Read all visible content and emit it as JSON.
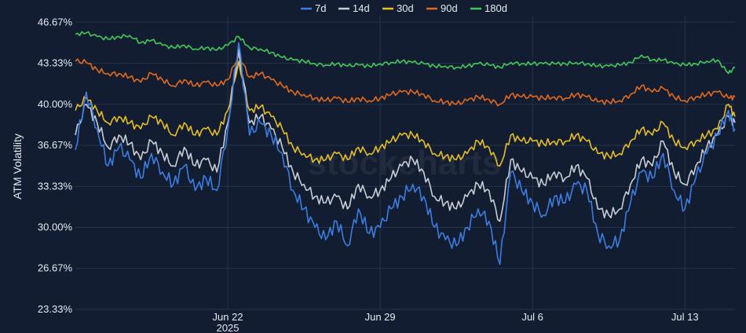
{
  "chart_data": {
    "type": "line",
    "title": "",
    "ylabel": "ATM Volatility",
    "xlabel": "",
    "watermark": "stockcharts",
    "ylim": [
      23.33,
      47.2
    ],
    "y_ticks": [
      "46.67%",
      "43.33%",
      "40.00%",
      "36.67%",
      "33.33%",
      "30.00%",
      "26.67%",
      "23.33%"
    ],
    "y_tick_values": [
      46.67,
      43.33,
      40.0,
      36.67,
      33.33,
      30.0,
      26.67,
      23.33
    ],
    "x_ticks": [
      {
        "day": 22,
        "label": "Jun 22",
        "sub": "2025"
      },
      {
        "day": 29,
        "label": "Jun 29",
        "sub": ""
      },
      {
        "day": 36,
        "label": "Jul 6",
        "sub": ""
      },
      {
        "day": 43,
        "label": "Jul 13",
        "sub": ""
      }
    ],
    "xlim": [
      15.0,
      45.3
    ],
    "legend_position": "top-center",
    "grid": true,
    "series": [
      {
        "name": "7d",
        "color": "#3b7de0",
        "x": [
          15.0,
          15.5,
          16.0,
          16.5,
          17.0,
          17.5,
          18.0,
          18.5,
          19.0,
          19.5,
          20.0,
          20.5,
          21.0,
          21.5,
          22.0,
          22.5,
          23.0,
          23.5,
          24.0,
          24.5,
          25.0,
          25.5,
          26.0,
          26.5,
          27.0,
          27.5,
          28.0,
          28.5,
          29.0,
          29.5,
          30.0,
          30.5,
          31.0,
          31.5,
          32.0,
          32.5,
          33.0,
          33.5,
          34.0,
          34.5,
          35.0,
          35.5,
          36.0,
          36.5,
          37.0,
          37.5,
          38.0,
          38.5,
          39.0,
          39.5,
          40.0,
          40.5,
          41.0,
          41.5,
          42.0,
          42.5,
          43.0,
          43.5,
          44.0,
          44.5,
          45.0,
          45.3
        ],
        "y": [
          36.3,
          41.0,
          38.0,
          35.0,
          36.5,
          35.5,
          34.0,
          36.0,
          34.5,
          33.5,
          35.0,
          33.0,
          34.0,
          33.0,
          38.0,
          45.0,
          37.5,
          38.5,
          37.5,
          36.0,
          33.0,
          31.5,
          30.0,
          29.0,
          30.5,
          28.5,
          31.5,
          29.5,
          30.0,
          31.5,
          32.5,
          33.5,
          32.5,
          30.0,
          29.0,
          28.5,
          30.0,
          31.5,
          30.5,
          27.0,
          34.5,
          33.0,
          32.0,
          31.0,
          32.5,
          32.0,
          33.5,
          33.0,
          29.5,
          28.5,
          29.0,
          32.0,
          34.5,
          34.0,
          36.0,
          33.0,
          31.5,
          34.0,
          36.0,
          37.5,
          39.5,
          38.0
        ]
      },
      {
        "name": "14d",
        "color": "#c9ced6",
        "x": [
          15.0,
          15.5,
          16.0,
          16.5,
          17.0,
          17.5,
          18.0,
          18.5,
          19.0,
          19.5,
          20.0,
          20.5,
          21.0,
          21.5,
          22.0,
          22.5,
          23.0,
          23.5,
          24.0,
          24.5,
          25.0,
          25.5,
          26.0,
          26.5,
          27.0,
          27.5,
          28.0,
          28.5,
          29.0,
          29.5,
          30.0,
          30.5,
          31.0,
          31.5,
          32.0,
          32.5,
          33.0,
          33.5,
          34.0,
          34.5,
          35.0,
          35.5,
          36.0,
          36.5,
          37.0,
          37.5,
          38.0,
          38.5,
          39.0,
          39.5,
          40.0,
          40.5,
          41.0,
          41.5,
          42.0,
          42.5,
          43.0,
          43.5,
          44.0,
          44.5,
          45.0,
          45.3
        ],
        "y": [
          37.5,
          40.0,
          38.5,
          36.5,
          37.5,
          36.8,
          35.5,
          37.0,
          36.0,
          35.0,
          36.5,
          35.0,
          35.5,
          34.5,
          38.5,
          44.5,
          38.5,
          39.0,
          38.0,
          36.5,
          34.5,
          33.5,
          32.5,
          32.0,
          32.5,
          31.5,
          33.5,
          32.5,
          33.0,
          34.0,
          35.0,
          35.5,
          34.5,
          32.5,
          32.0,
          31.5,
          32.5,
          33.5,
          33.0,
          30.5,
          35.5,
          34.5,
          34.0,
          33.5,
          34.5,
          34.0,
          35.0,
          34.0,
          31.5,
          31.0,
          31.5,
          33.5,
          35.5,
          35.0,
          37.0,
          34.5,
          33.5,
          35.0,
          36.5,
          37.5,
          39.0,
          38.5
        ]
      },
      {
        "name": "30d",
        "color": "#e8bf22",
        "x": [
          15.0,
          15.5,
          16.0,
          16.5,
          17.0,
          17.5,
          18.0,
          18.5,
          19.0,
          19.5,
          20.0,
          20.5,
          21.0,
          21.5,
          22.0,
          22.5,
          23.0,
          23.5,
          24.0,
          24.5,
          25.0,
          25.5,
          26.0,
          26.5,
          27.0,
          27.5,
          28.0,
          28.5,
          29.0,
          29.5,
          30.0,
          30.5,
          31.0,
          31.5,
          32.0,
          32.5,
          33.0,
          33.5,
          34.0,
          34.5,
          35.0,
          35.5,
          36.0,
          36.5,
          37.0,
          37.5,
          38.0,
          38.5,
          39.0,
          39.5,
          40.0,
          40.5,
          41.0,
          41.5,
          42.0,
          42.5,
          43.0,
          43.5,
          44.0,
          44.5,
          45.0,
          45.3
        ],
        "y": [
          39.5,
          40.5,
          39.5,
          38.5,
          39.0,
          38.5,
          38.0,
          39.0,
          38.5,
          37.5,
          38.5,
          37.5,
          38.0,
          37.5,
          39.5,
          43.5,
          39.5,
          39.8,
          39.0,
          38.0,
          36.5,
          36.0,
          35.5,
          35.5,
          36.0,
          35.5,
          36.5,
          36.0,
          36.5,
          37.0,
          37.5,
          37.5,
          37.0,
          36.0,
          35.8,
          35.5,
          36.0,
          37.0,
          36.5,
          35.0,
          37.5,
          37.0,
          37.0,
          36.8,
          37.0,
          37.0,
          37.5,
          37.0,
          36.0,
          35.8,
          36.0,
          37.0,
          38.0,
          37.5,
          38.5,
          37.0,
          36.5,
          37.0,
          37.5,
          38.0,
          40.0,
          39.0
        ]
      },
      {
        "name": "90d",
        "color": "#e26a1c",
        "x": [
          15.0,
          15.5,
          16.0,
          16.5,
          17.0,
          17.5,
          18.0,
          18.5,
          19.0,
          19.5,
          20.0,
          20.5,
          21.0,
          21.5,
          22.0,
          22.5,
          23.0,
          23.5,
          24.0,
          24.5,
          25.0,
          25.5,
          26.0,
          26.5,
          27.0,
          27.5,
          28.0,
          28.5,
          29.0,
          29.5,
          30.0,
          30.5,
          31.0,
          31.5,
          32.0,
          32.5,
          33.0,
          33.5,
          34.0,
          34.5,
          35.0,
          35.5,
          36.0,
          36.5,
          37.0,
          37.5,
          38.0,
          38.5,
          39.0,
          39.5,
          40.0,
          40.5,
          41.0,
          41.5,
          42.0,
          42.5,
          43.0,
          43.5,
          44.0,
          44.5,
          45.0,
          45.3
        ],
        "y": [
          43.5,
          43.4,
          42.8,
          42.5,
          42.5,
          42.2,
          41.8,
          42.5,
          42.0,
          41.5,
          42.0,
          41.5,
          41.8,
          41.5,
          42.0,
          44.0,
          42.2,
          42.5,
          42.0,
          41.5,
          41.0,
          40.8,
          40.5,
          40.3,
          40.5,
          40.2,
          40.5,
          40.3,
          40.5,
          40.8,
          41.0,
          41.0,
          40.8,
          40.3,
          40.2,
          40.0,
          40.3,
          40.6,
          40.4,
          40.0,
          40.8,
          40.6,
          40.6,
          40.5,
          40.6,
          40.5,
          40.8,
          40.6,
          40.2,
          40.2,
          40.3,
          40.8,
          41.5,
          41.0,
          41.3,
          40.6,
          40.3,
          40.6,
          40.8,
          41.0,
          40.5,
          40.6
        ]
      },
      {
        "name": "180d",
        "color": "#3fc95a",
        "x": [
          15.0,
          15.5,
          16.0,
          16.5,
          17.0,
          17.5,
          18.0,
          18.5,
          19.0,
          19.5,
          20.0,
          20.5,
          21.0,
          21.5,
          22.0,
          22.5,
          23.0,
          23.5,
          24.0,
          24.5,
          25.0,
          25.5,
          26.0,
          26.5,
          27.0,
          27.5,
          28.0,
          28.5,
          29.0,
          29.5,
          30.0,
          30.5,
          31.0,
          31.5,
          32.0,
          32.5,
          33.0,
          33.5,
          34.0,
          34.5,
          35.0,
          35.5,
          36.0,
          36.5,
          37.0,
          37.5,
          38.0,
          38.5,
          39.0,
          39.5,
          40.0,
          40.5,
          41.0,
          41.5,
          42.0,
          42.5,
          43.0,
          43.5,
          44.0,
          44.5,
          45.0,
          45.3
        ],
        "y": [
          45.7,
          45.8,
          45.5,
          45.3,
          45.5,
          45.6,
          45.0,
          45.2,
          44.8,
          44.6,
          44.8,
          44.5,
          44.6,
          44.4,
          44.8,
          45.5,
          44.6,
          44.5,
          44.2,
          43.8,
          43.6,
          43.5,
          43.3,
          43.2,
          43.3,
          43.1,
          43.2,
          43.1,
          43.3,
          43.4,
          43.5,
          43.4,
          43.3,
          43.1,
          43.1,
          43.0,
          43.1,
          43.3,
          43.2,
          43.0,
          43.4,
          43.3,
          43.3,
          43.3,
          43.3,
          43.3,
          43.4,
          43.3,
          43.1,
          43.1,
          43.2,
          43.4,
          44.0,
          43.6,
          43.6,
          43.3,
          43.2,
          43.3,
          43.5,
          43.6,
          42.5,
          43.0
        ]
      }
    ]
  }
}
